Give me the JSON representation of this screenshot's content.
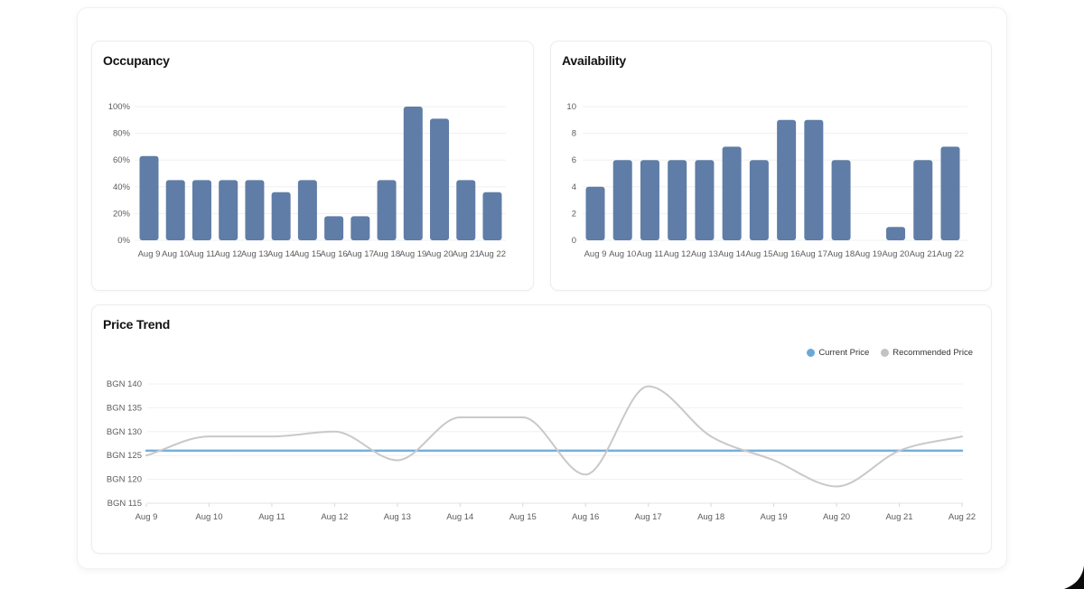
{
  "colors": {
    "bar": "#5f7da6",
    "current_price": "#74afdc",
    "current_price_dot": "#69a9d8",
    "recommended_price": "#c9c9c9",
    "recommended_price_dot": "#c2c2c2",
    "gridline": "#f0f0f0",
    "axis_line": "#e3e3e3",
    "tick": "#d9d9d9"
  },
  "chart_data": [
    {
      "id": "occupancy",
      "type": "bar",
      "title": "Occupancy",
      "categories": [
        "Aug 9",
        "Aug 10",
        "Aug 11",
        "Aug 12",
        "Aug 13",
        "Aug 14",
        "Aug 15",
        "Aug 16",
        "Aug 17",
        "Aug 18",
        "Aug 19",
        "Aug 20",
        "Aug 21",
        "Aug 22"
      ],
      "values": [
        63,
        45,
        45,
        45,
        45,
        36,
        45,
        18,
        18,
        45,
        100,
        91,
        45,
        36
      ],
      "ylim": [
        0,
        100
      ],
      "yticks": [
        {
          "v": 0,
          "label": "0%"
        },
        {
          "v": 20,
          "label": "20%"
        },
        {
          "v": 40,
          "label": "40%"
        },
        {
          "v": 60,
          "label": "60%"
        },
        {
          "v": 80,
          "label": "80%"
        },
        {
          "v": 100,
          "label": "100%"
        }
      ],
      "grid": true,
      "legend": false
    },
    {
      "id": "availability",
      "type": "bar",
      "title": "Availability",
      "categories": [
        "Aug 9",
        "Aug 10",
        "Aug 11",
        "Aug 12",
        "Aug 13",
        "Aug 14",
        "Aug 15",
        "Aug 16",
        "Aug 17",
        "Aug 18",
        "Aug 19",
        "Aug 20",
        "Aug 21",
        "Aug 22"
      ],
      "values": [
        4,
        6,
        6,
        6,
        6,
        7,
        6,
        9,
        9,
        6,
        0,
        1,
        6,
        7
      ],
      "ylim": [
        0,
        10
      ],
      "yticks": [
        {
          "v": 0,
          "label": "0"
        },
        {
          "v": 2,
          "label": "2"
        },
        {
          "v": 4,
          "label": "4"
        },
        {
          "v": 6,
          "label": "6"
        },
        {
          "v": 8,
          "label": "8"
        },
        {
          "v": 10,
          "label": "10"
        }
      ],
      "grid": true,
      "legend": false
    },
    {
      "id": "price_trend",
      "type": "line",
      "title": "Price Trend",
      "categories": [
        "Aug 9",
        "Aug 10",
        "Aug 11",
        "Aug 12",
        "Aug 13",
        "Aug 14",
        "Aug 15",
        "Aug 16",
        "Aug 17",
        "Aug 18",
        "Aug 19",
        "Aug 20",
        "Aug 21",
        "Aug 22"
      ],
      "series": [
        {
          "name": "Current Price",
          "color": "#74afdc",
          "interpolation": "linear",
          "values": [
            126,
            126,
            126,
            126,
            126,
            126,
            126,
            126,
            126,
            126,
            126,
            126,
            126,
            126
          ]
        },
        {
          "name": "Recommended Price",
          "color": "#c9c9c9",
          "interpolation": "monotone",
          "values": [
            125,
            129,
            129,
            130,
            124,
            133,
            133,
            121,
            139.5,
            129,
            124,
            118.5,
            126,
            129
          ]
        }
      ],
      "ylim": [
        115,
        140
      ],
      "yticks": [
        {
          "v": 115,
          "label": "BGN 115"
        },
        {
          "v": 120,
          "label": "BGN 120"
        },
        {
          "v": 125,
          "label": "BGN 125"
        },
        {
          "v": 130,
          "label": "BGN 130"
        },
        {
          "v": 135,
          "label": "BGN 135"
        },
        {
          "v": 140,
          "label": "BGN 140"
        }
      ],
      "grid": true,
      "legend": true,
      "legend_position": "top-right"
    }
  ]
}
